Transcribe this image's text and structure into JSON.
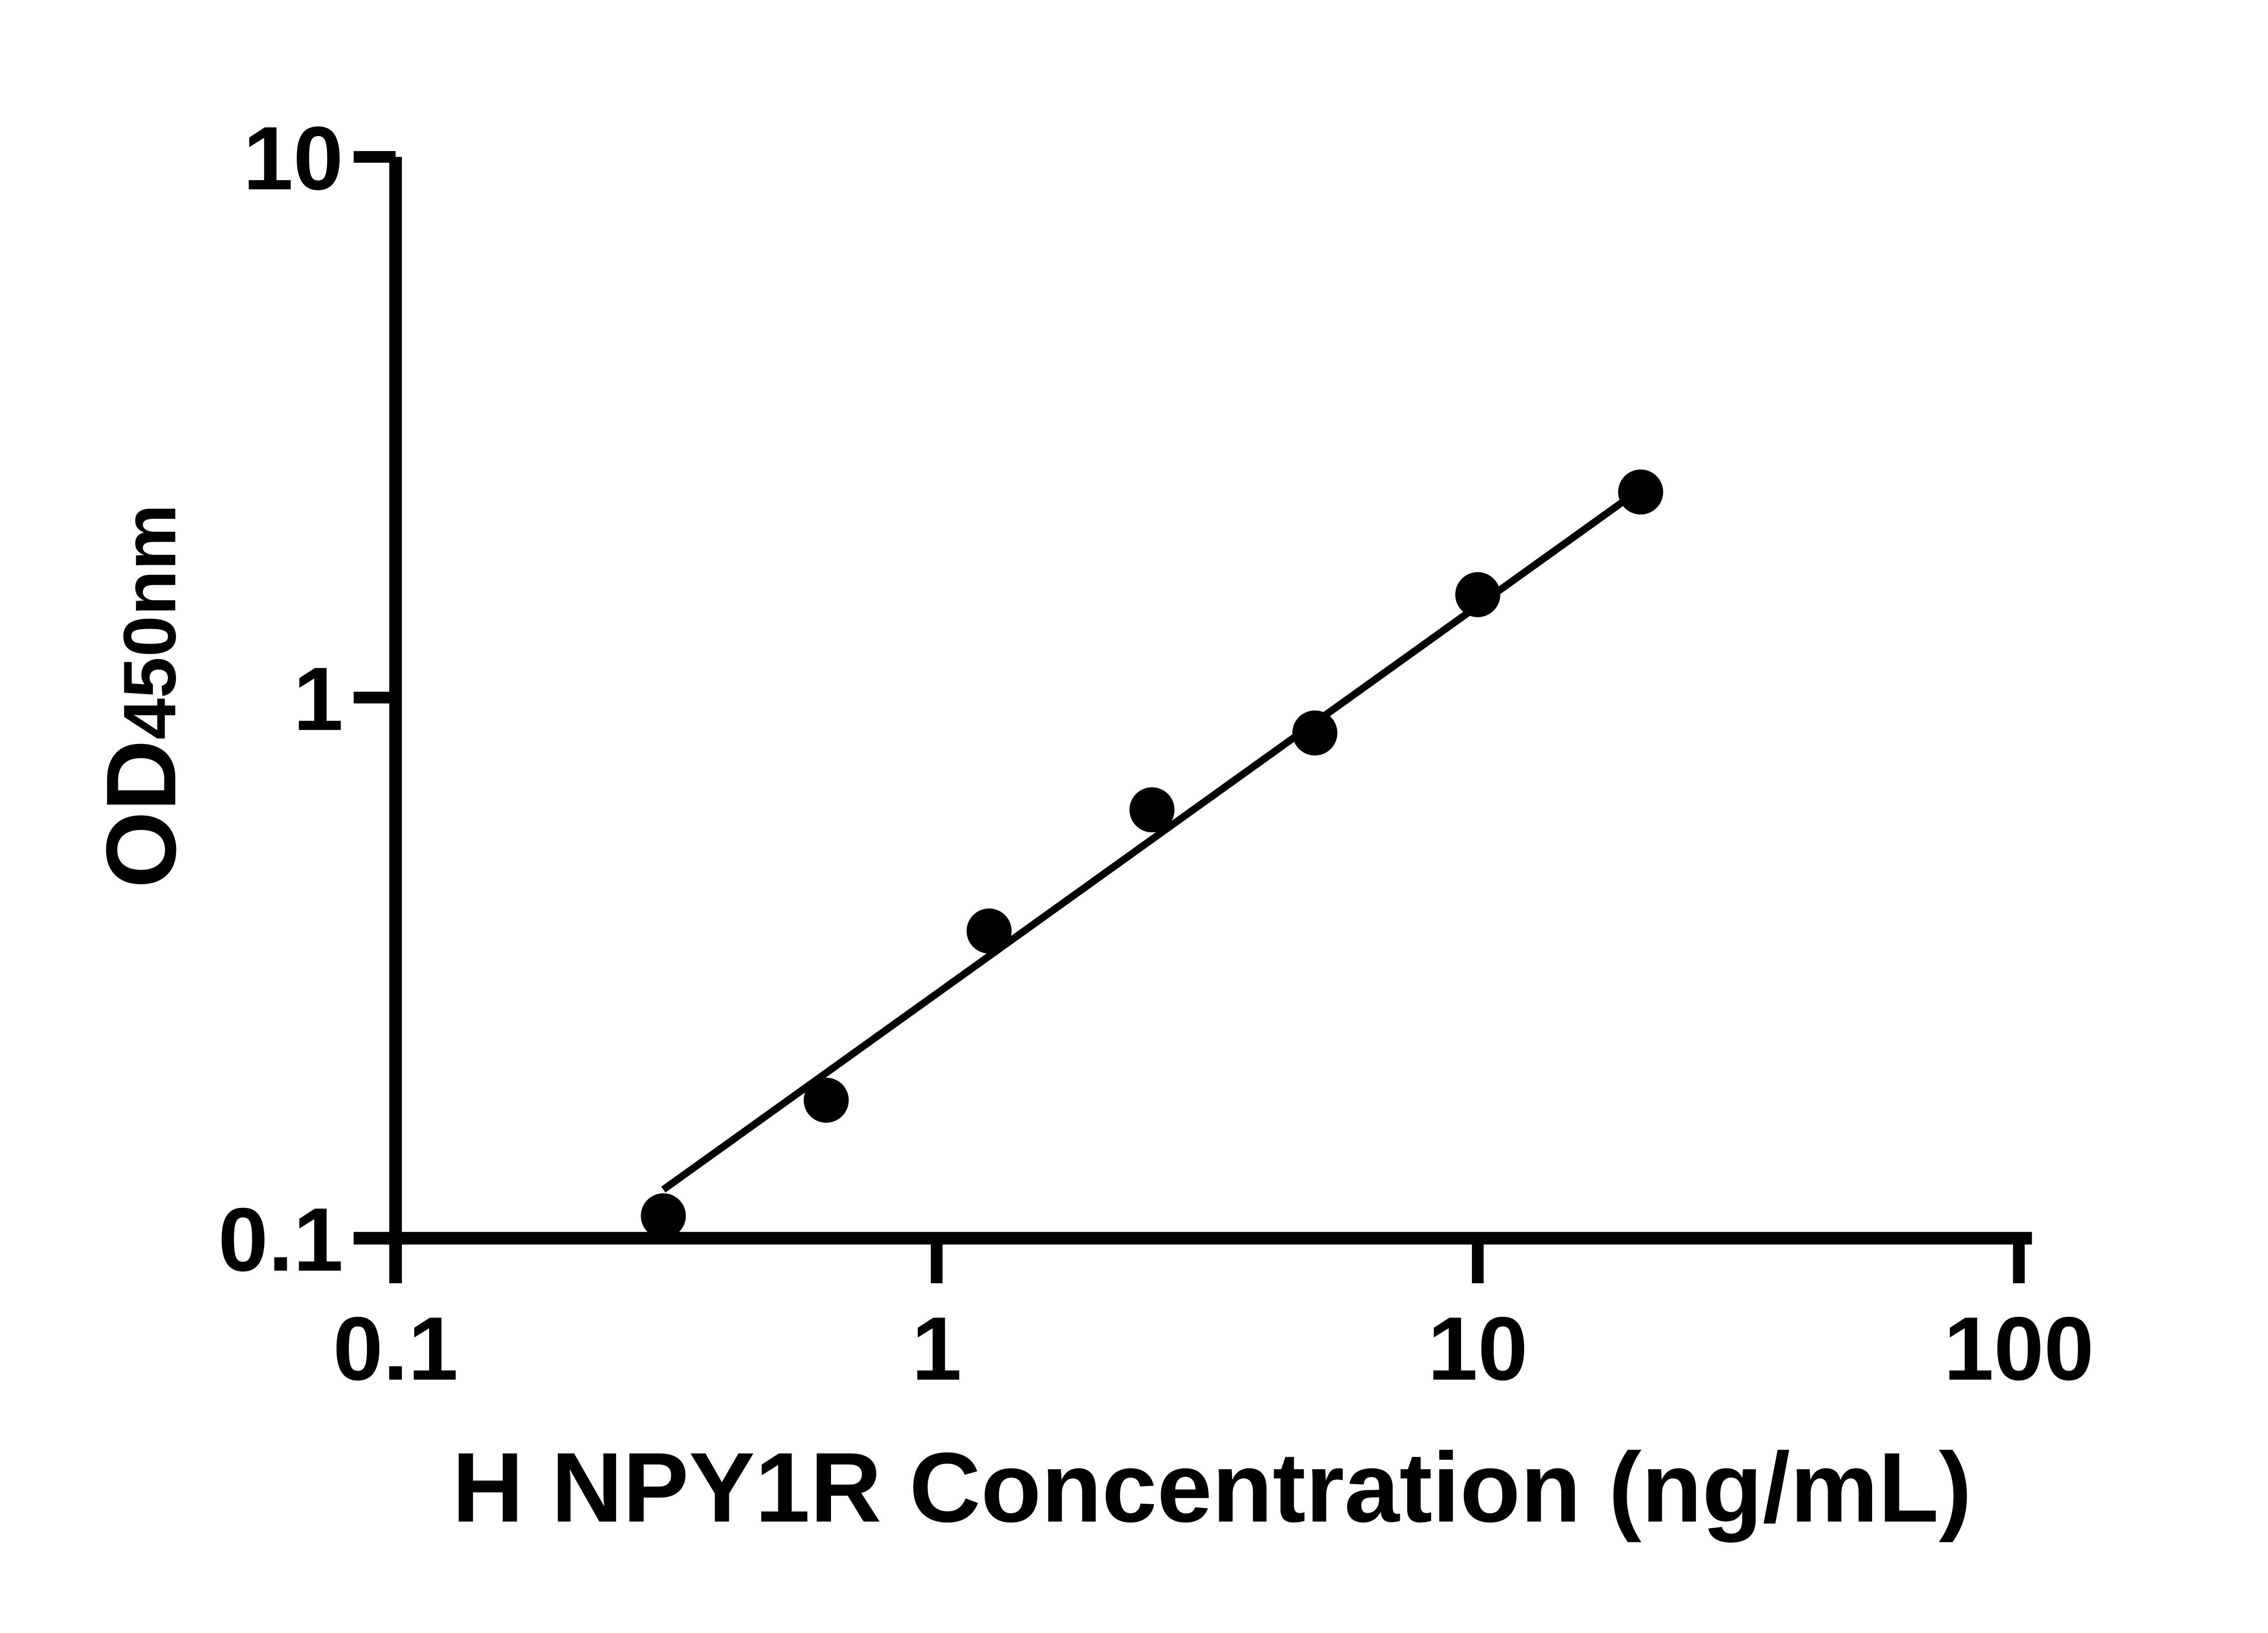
{
  "chart_data": {
    "type": "scatter",
    "xlabel": "H NPY1R Concentration (ng/mL)",
    "ylabel": "OD450nm",
    "ylabel_main": "OD",
    "ylabel_sub": "450nm",
    "x_scale": "log",
    "y_scale": "log",
    "xlim": [
      0.1,
      100
    ],
    "ylim": [
      0.1,
      10
    ],
    "grid": false,
    "legend": false,
    "x_ticks": [
      {
        "value": 0.1,
        "label": "0.1"
      },
      {
        "value": 1,
        "label": "1"
      },
      {
        "value": 10,
        "label": "10"
      },
      {
        "value": 100,
        "label": "100"
      }
    ],
    "y_ticks": [
      {
        "value": 0.1,
        "label": "0.1"
      },
      {
        "value": 1,
        "label": "1"
      },
      {
        "value": 10,
        "label": "10"
      }
    ],
    "points": [
      {
        "x": 0.3125,
        "y": 0.11
      },
      {
        "x": 0.625,
        "y": 0.18
      },
      {
        "x": 1.25,
        "y": 0.37
      },
      {
        "x": 2.5,
        "y": 0.62
      },
      {
        "x": 5,
        "y": 0.86
      },
      {
        "x": 10,
        "y": 1.55
      },
      {
        "x": 20,
        "y": 2.4
      }
    ],
    "trendline": {
      "x1": 0.3125,
      "y1": 0.123,
      "x2": 20,
      "y2": 2.43
    },
    "colors": {
      "axis": "#000000",
      "marker": "#000000",
      "trendline": "#000000",
      "text": "#000000",
      "background": "#ffffff"
    }
  }
}
